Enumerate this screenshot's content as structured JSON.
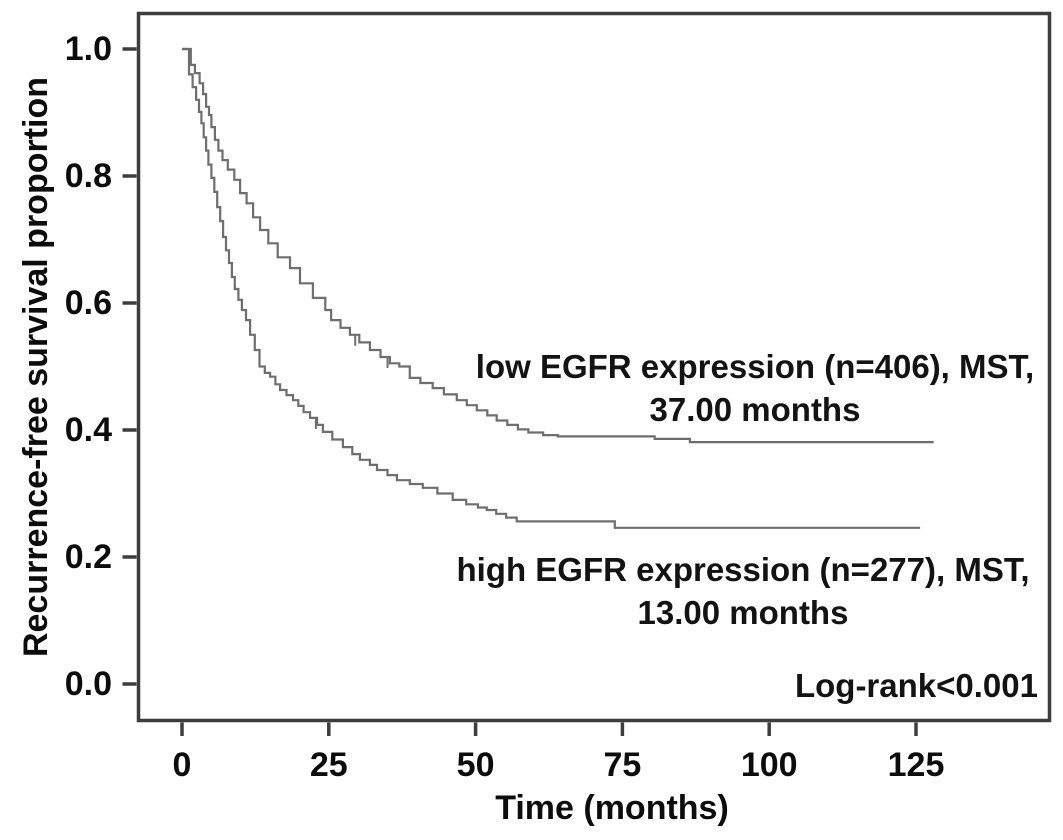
{
  "figure": {
    "background": "#ffffff",
    "frame_color": "#3d3d3d",
    "text_color": "#0c0c0c",
    "curve_color": "#6e6e6e"
  },
  "chart_data": {
    "type": "line",
    "subtype": "kaplan_meier_step",
    "title": "",
    "xlabel": "Time (months)",
    "ylabel": "Recurrence-free survival proportion",
    "xlim": [
      -7.7,
      148
    ],
    "ylim": [
      -0.06,
      1.06
    ],
    "grid": false,
    "legend_position": "inline-annotations",
    "x_ticks": [
      0,
      25,
      50,
      75,
      100,
      125
    ],
    "x_tick_labels": [
      "0",
      "25",
      "50",
      "75",
      "100",
      "125"
    ],
    "y_ticks": [
      0.0,
      0.2,
      0.4,
      0.6,
      0.8,
      1.0
    ],
    "y_tick_labels": [
      "0.0",
      "0.2",
      "0.4",
      "0.6",
      "0.8",
      "1.0"
    ],
    "series": [
      {
        "id": "low-egfr",
        "name": "low EGFR expression",
        "n": 406,
        "mst_months": 37.0,
        "label_line1": "low EGFR expression (n=406), MST,",
        "label_line2": "37.00 months",
        "color": "#6e6e6e",
        "points": [
          [
            0,
            1.0
          ],
          [
            1.5,
            0.975
          ],
          [
            2.2,
            0.962
          ],
          [
            3,
            0.946
          ],
          [
            3.6,
            0.929
          ],
          [
            4.1,
            0.909
          ],
          [
            4.6,
            0.896
          ],
          [
            5,
            0.877
          ],
          [
            5.6,
            0.857
          ],
          [
            6.2,
            0.84
          ],
          [
            6.9,
            0.825
          ],
          [
            7.8,
            0.81
          ],
          [
            8.9,
            0.794
          ],
          [
            9.9,
            0.773
          ],
          [
            11,
            0.757
          ],
          [
            12.1,
            0.735
          ],
          [
            13.3,
            0.715
          ],
          [
            14.7,
            0.694
          ],
          [
            16.3,
            0.672
          ],
          [
            18.4,
            0.655
          ],
          [
            20.1,
            0.631
          ],
          [
            22.3,
            0.608
          ],
          [
            24.4,
            0.589
          ],
          [
            25.4,
            0.573
          ],
          [
            27,
            0.561
          ],
          [
            28.6,
            0.55
          ],
          [
            30.2,
            0.538
          ],
          [
            32,
            0.526
          ],
          [
            33.8,
            0.515
          ],
          [
            35.4,
            0.505
          ],
          [
            37,
            0.5
          ],
          [
            38.8,
            0.482
          ],
          [
            40.6,
            0.474
          ],
          [
            42.7,
            0.466
          ],
          [
            44.6,
            0.456
          ],
          [
            46.8,
            0.447
          ],
          [
            48.5,
            0.439
          ],
          [
            50.2,
            0.431
          ],
          [
            52,
            0.423
          ],
          [
            53.6,
            0.415
          ],
          [
            55.4,
            0.408
          ],
          [
            57.2,
            0.401
          ],
          [
            59,
            0.396
          ],
          [
            61.5,
            0.392
          ],
          [
            64,
            0.39
          ],
          [
            80.5,
            0.386
          ],
          [
            86.5,
            0.381
          ],
          [
            128,
            0.381
          ]
        ],
        "censor_marks": [
          [
            29.5,
            0.55
          ],
          [
            35,
            0.515
          ]
        ]
      },
      {
        "id": "high-egfr",
        "name": "high EGFR expression",
        "n": 277,
        "mst_months": 13.0,
        "label_line1": "high EGFR expression (n=277), MST,",
        "label_line2": "13.00 months",
        "color": "#6e6e6e",
        "points": [
          [
            0,
            1.0
          ],
          [
            1.2,
            0.96
          ],
          [
            1.8,
            0.94
          ],
          [
            2.4,
            0.92
          ],
          [
            2.9,
            0.901
          ],
          [
            3.3,
            0.883
          ],
          [
            3.7,
            0.861
          ],
          [
            4.1,
            0.84
          ],
          [
            4.5,
            0.818
          ],
          [
            5,
            0.797
          ],
          [
            5.5,
            0.775
          ],
          [
            6,
            0.751
          ],
          [
            6.5,
            0.729
          ],
          [
            7,
            0.704
          ],
          [
            7.5,
            0.683
          ],
          [
            8,
            0.663
          ],
          [
            8.5,
            0.641
          ],
          [
            9,
            0.622
          ],
          [
            9.6,
            0.605
          ],
          [
            10.2,
            0.589
          ],
          [
            10.9,
            0.573
          ],
          [
            11.6,
            0.55
          ],
          [
            12.4,
            0.526
          ],
          [
            13.2,
            0.5
          ],
          [
            14.1,
            0.49
          ],
          [
            15,
            0.484
          ],
          [
            15.9,
            0.472
          ],
          [
            16.7,
            0.463
          ],
          [
            17.8,
            0.455
          ],
          [
            18.9,
            0.447
          ],
          [
            19.8,
            0.438
          ],
          [
            20.7,
            0.428
          ],
          [
            21.8,
            0.419
          ],
          [
            23,
            0.408
          ],
          [
            24,
            0.397
          ],
          [
            25.6,
            0.385
          ],
          [
            27.4,
            0.373
          ],
          [
            29,
            0.362
          ],
          [
            30.3,
            0.353
          ],
          [
            32,
            0.345
          ],
          [
            33.2,
            0.337
          ],
          [
            35,
            0.329
          ],
          [
            36.6,
            0.321
          ],
          [
            38.8,
            0.315
          ],
          [
            41,
            0.309
          ],
          [
            43.5,
            0.3
          ],
          [
            46.1,
            0.29
          ],
          [
            48.4,
            0.283
          ],
          [
            50.4,
            0.278
          ],
          [
            51.9,
            0.274
          ],
          [
            53.5,
            0.268
          ],
          [
            55.2,
            0.262
          ],
          [
            57,
            0.256
          ],
          [
            73.7,
            0.246
          ],
          [
            125.7,
            0.246
          ]
        ],
        "censor_marks": [
          [
            22.8,
            0.419
          ]
        ]
      }
    ],
    "annotations": [
      {
        "id": "logrank",
        "text": "Log-rank<0.001",
        "align": "right"
      }
    ]
  }
}
